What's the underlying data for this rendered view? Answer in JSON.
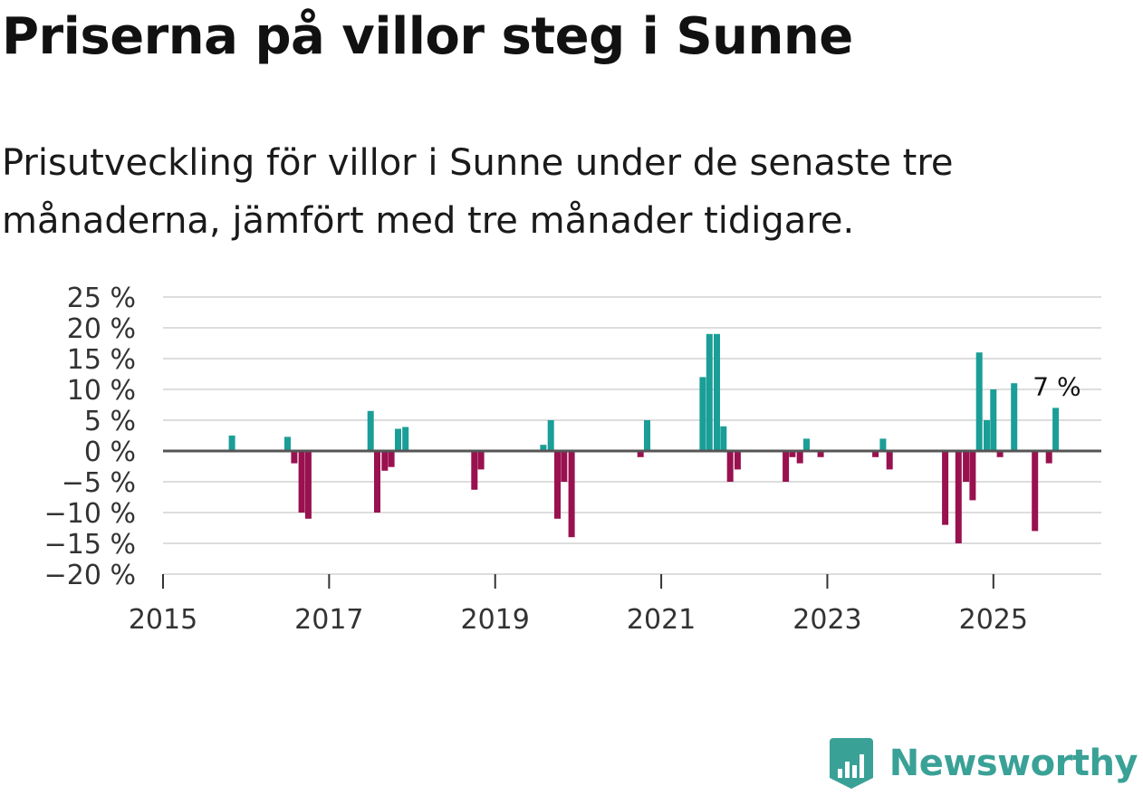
{
  "header": {
    "title": "Priserna på villor steg i Sunne",
    "subtitle": "Prisutveckling för villor i Sunne under de senaste tre månaderna, jämfört med tre månader tidigare."
  },
  "brand": {
    "name": "Newsworthy",
    "icon": "newsworthy-logo-icon"
  },
  "colors": {
    "positive": "#1a9e97",
    "negative": "#99114f",
    "grid": "#dddddd",
    "zero_line": "#555555",
    "brand": "#3aa197"
  },
  "chart_data": {
    "type": "bar",
    "title": "Priserna på villor steg i Sunne",
    "xlabel": "",
    "ylabel": "",
    "ylim": [
      -20,
      25
    ],
    "xlim": [
      2015,
      2026.3
    ],
    "y_ticks": [
      -20,
      -15,
      -10,
      -5,
      0,
      5,
      10,
      15,
      20,
      25
    ],
    "y_tick_labels": [
      "−20 %",
      "−15 %",
      "−10 %",
      "−5 %",
      "0 %",
      "5 %",
      "10 %",
      "15 %",
      "20 %",
      "25 %"
    ],
    "x_ticks": [
      2015,
      2017,
      2019,
      2021,
      2023,
      2025
    ],
    "x_tick_labels": [
      "2015",
      "2017",
      "2019",
      "2021",
      "2023",
      "2025"
    ],
    "grid": true,
    "annotation": {
      "text": "7 %",
      "x": 2025.75,
      "value": 7
    },
    "series": [
      {
        "name": "Prisutveckling",
        "points": [
          {
            "x": 2015.83,
            "value": 2.5
          },
          {
            "x": 2016.5,
            "value": 2.3
          },
          {
            "x": 2016.58,
            "value": -2
          },
          {
            "x": 2016.67,
            "value": -10
          },
          {
            "x": 2016.75,
            "value": -11
          },
          {
            "x": 2017.5,
            "value": 6.5
          },
          {
            "x": 2017.58,
            "value": -10
          },
          {
            "x": 2017.67,
            "value": -3.2
          },
          {
            "x": 2017.75,
            "value": -2.6
          },
          {
            "x": 2017.83,
            "value": 3.6
          },
          {
            "x": 2017.92,
            "value": 3.9
          },
          {
            "x": 2018.75,
            "value": -6.3
          },
          {
            "x": 2018.83,
            "value": -3
          },
          {
            "x": 2019.58,
            "value": 1
          },
          {
            "x": 2019.67,
            "value": 5
          },
          {
            "x": 2019.75,
            "value": -11
          },
          {
            "x": 2019.83,
            "value": -5
          },
          {
            "x": 2019.92,
            "value": -14
          },
          {
            "x": 2020.75,
            "value": -1
          },
          {
            "x": 2020.83,
            "value": 5
          },
          {
            "x": 2021.5,
            "value": 12
          },
          {
            "x": 2021.58,
            "value": 19
          },
          {
            "x": 2021.67,
            "value": 19
          },
          {
            "x": 2021.75,
            "value": 4
          },
          {
            "x": 2021.83,
            "value": -5
          },
          {
            "x": 2021.92,
            "value": -3
          },
          {
            "x": 2022.5,
            "value": -5
          },
          {
            "x": 2022.58,
            "value": -1
          },
          {
            "x": 2022.67,
            "value": -2
          },
          {
            "x": 2022.75,
            "value": 2
          },
          {
            "x": 2022.92,
            "value": -1
          },
          {
            "x": 2023.58,
            "value": -1
          },
          {
            "x": 2023.67,
            "value": 2
          },
          {
            "x": 2023.75,
            "value": -3
          },
          {
            "x": 2024.42,
            "value": -12
          },
          {
            "x": 2024.58,
            "value": -15
          },
          {
            "x": 2024.67,
            "value": -5
          },
          {
            "x": 2024.75,
            "value": -8
          },
          {
            "x": 2024.83,
            "value": 16
          },
          {
            "x": 2024.92,
            "value": 5
          },
          {
            "x": 2025.0,
            "value": 10
          },
          {
            "x": 2025.08,
            "value": -1
          },
          {
            "x": 2025.25,
            "value": 11
          },
          {
            "x": 2025.5,
            "value": -13
          },
          {
            "x": 2025.67,
            "value": -2
          },
          {
            "x": 2025.75,
            "value": 7
          }
        ]
      }
    ]
  }
}
